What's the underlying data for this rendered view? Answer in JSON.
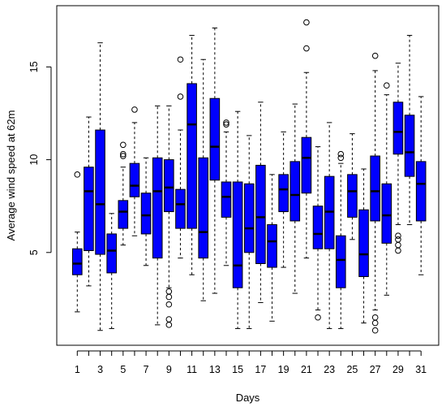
{
  "chart_data": {
    "type": "box",
    "xlabel": "Days",
    "ylabel": "Average wind speed at 62m",
    "ylim": [
      0,
      18.3
    ],
    "y_ticks": [
      5,
      10,
      15
    ],
    "x_tick_labels": [
      "1",
      "3",
      "5",
      "7",
      "9",
      "11",
      "13",
      "15",
      "17",
      "19",
      "21",
      "23",
      "25",
      "27",
      "29",
      "31"
    ],
    "box_color": "#0000ff",
    "grid": false,
    "legend": "none",
    "boxes": [
      {
        "day": 1,
        "whisker_low": 1.8,
        "q1": 3.8,
        "median": 4.4,
        "q3": 5.2,
        "whisker_high": 6.1,
        "outliers": [
          9.2
        ]
      },
      {
        "day": 2,
        "whisker_low": 3.2,
        "q1": 5.1,
        "median": 8.3,
        "q3": 9.6,
        "whisker_high": 12.3,
        "outliers": []
      },
      {
        "day": 3,
        "whisker_low": 0.8,
        "q1": 4.9,
        "median": 7.6,
        "q3": 11.6,
        "whisker_high": 16.3,
        "outliers": []
      },
      {
        "day": 4,
        "whisker_low": 0.9,
        "q1": 3.9,
        "median": 5.1,
        "q3": 6.0,
        "whisker_high": 7.1,
        "outliers": []
      },
      {
        "day": 5,
        "whisker_low": 5.4,
        "q1": 6.3,
        "median": 7.2,
        "q3": 7.8,
        "whisker_high": 9.6,
        "outliers": [
          10.2,
          10.3,
          10.8
        ]
      },
      {
        "day": 6,
        "whisker_low": 5.9,
        "q1": 8.0,
        "median": 8.6,
        "q3": 9.8,
        "whisker_high": 12.0,
        "outliers": [
          12.7
        ]
      },
      {
        "day": 7,
        "whisker_low": 4.3,
        "q1": 6.0,
        "median": 7.0,
        "q3": 8.2,
        "whisker_high": 10.1,
        "outliers": []
      },
      {
        "day": 8,
        "whisker_low": 1.1,
        "q1": 4.7,
        "median": 8.3,
        "q3": 10.1,
        "whisker_high": 12.9,
        "outliers": []
      },
      {
        "day": 9,
        "whisker_low": 3.1,
        "q1": 7.2,
        "median": 8.5,
        "q3": 10.0,
        "whisker_high": 12.9,
        "outliers": [
          1.1,
          1.4,
          2.2,
          2.6,
          2.9
        ]
      },
      {
        "day": 10,
        "whisker_low": 4.7,
        "q1": 6.3,
        "median": 7.6,
        "q3": 8.4,
        "whisker_high": 11.6,
        "outliers": [
          13.4,
          15.4
        ]
      },
      {
        "day": 11,
        "whisker_low": 3.8,
        "q1": 6.3,
        "median": 11.9,
        "q3": 14.1,
        "whisker_high": 16.7,
        "outliers": []
      },
      {
        "day": 12,
        "whisker_low": 2.4,
        "q1": 4.7,
        "median": 6.1,
        "q3": 10.1,
        "whisker_high": 15.4,
        "outliers": []
      },
      {
        "day": 13,
        "whisker_low": 2.8,
        "q1": 8.9,
        "median": 10.7,
        "q3": 13.3,
        "whisker_high": 17.1,
        "outliers": []
      },
      {
        "day": 14,
        "whisker_low": 4.3,
        "q1": 6.9,
        "median": 8.0,
        "q3": 8.8,
        "whisker_high": 11.5,
        "outliers": [
          11.9,
          12.0
        ]
      },
      {
        "day": 15,
        "whisker_low": 0.9,
        "q1": 3.1,
        "median": 4.3,
        "q3": 8.8,
        "whisker_high": 12.6,
        "outliers": []
      },
      {
        "day": 16,
        "whisker_low": 0.9,
        "q1": 5.0,
        "median": 6.3,
        "q3": 8.7,
        "whisker_high": 11.3,
        "outliers": []
      },
      {
        "day": 17,
        "whisker_low": 2.3,
        "q1": 4.4,
        "median": 6.9,
        "q3": 9.7,
        "whisker_high": 13.1,
        "outliers": []
      },
      {
        "day": 18,
        "whisker_low": 1.3,
        "q1": 4.2,
        "median": 5.6,
        "q3": 6.5,
        "whisker_high": 9.2,
        "outliers": []
      },
      {
        "day": 19,
        "whisker_low": 4.2,
        "q1": 7.2,
        "median": 8.4,
        "q3": 9.2,
        "whisker_high": 11.5,
        "outliers": []
      },
      {
        "day": 20,
        "whisker_low": 2.8,
        "q1": 6.7,
        "median": 8.1,
        "q3": 9.9,
        "whisker_high": 13.0,
        "outliers": []
      },
      {
        "day": 21,
        "whisker_low": 4.7,
        "q1": 8.2,
        "median": 10.1,
        "q3": 11.2,
        "whisker_high": 14.7,
        "outliers": [
          16.0,
          17.4
        ]
      },
      {
        "day": 22,
        "whisker_low": 1.9,
        "q1": 5.2,
        "median": 6.0,
        "q3": 7.5,
        "whisker_high": 10.7,
        "outliers": [
          1.5
        ]
      },
      {
        "day": 23,
        "whisker_low": 0.9,
        "q1": 5.2,
        "median": 7.2,
        "q3": 9.1,
        "whisker_high": 12.0,
        "outliers": []
      },
      {
        "day": 24,
        "whisker_low": 0.9,
        "q1": 3.1,
        "median": 4.6,
        "q3": 5.9,
        "whisker_high": 9.8,
        "outliers": [
          10.1,
          10.3
        ]
      },
      {
        "day": 25,
        "whisker_low": 5.7,
        "q1": 6.9,
        "median": 8.3,
        "q3": 9.2,
        "whisker_high": 11.4,
        "outliers": []
      },
      {
        "day": 26,
        "whisker_low": 1.2,
        "q1": 3.7,
        "median": 4.9,
        "q3": 7.3,
        "whisker_high": 9.5,
        "outliers": []
      },
      {
        "day": 27,
        "whisker_low": 1.9,
        "q1": 6.7,
        "median": 8.3,
        "q3": 10.2,
        "whisker_high": 14.8,
        "outliers": [
          0.8,
          1.2,
          1.5,
          15.6
        ]
      },
      {
        "day": 28,
        "whisker_low": 2.7,
        "q1": 5.5,
        "median": 7.0,
        "q3": 8.7,
        "whisker_high": 13.5,
        "outliers": [
          14.0
        ]
      },
      {
        "day": 29,
        "whisker_low": 6.5,
        "q1": 10.3,
        "median": 11.5,
        "q3": 13.1,
        "whisker_high": 15.2,
        "outliers": [
          5.1,
          5.4,
          5.7,
          5.9
        ]
      },
      {
        "day": 30,
        "whisker_low": 6.5,
        "q1": 9.1,
        "median": 10.4,
        "q3": 12.4,
        "whisker_high": 16.7,
        "outliers": []
      },
      {
        "day": 31,
        "whisker_low": 3.8,
        "q1": 6.7,
        "median": 8.7,
        "q3": 9.9,
        "whisker_high": 13.4,
        "outliers": []
      }
    ]
  }
}
